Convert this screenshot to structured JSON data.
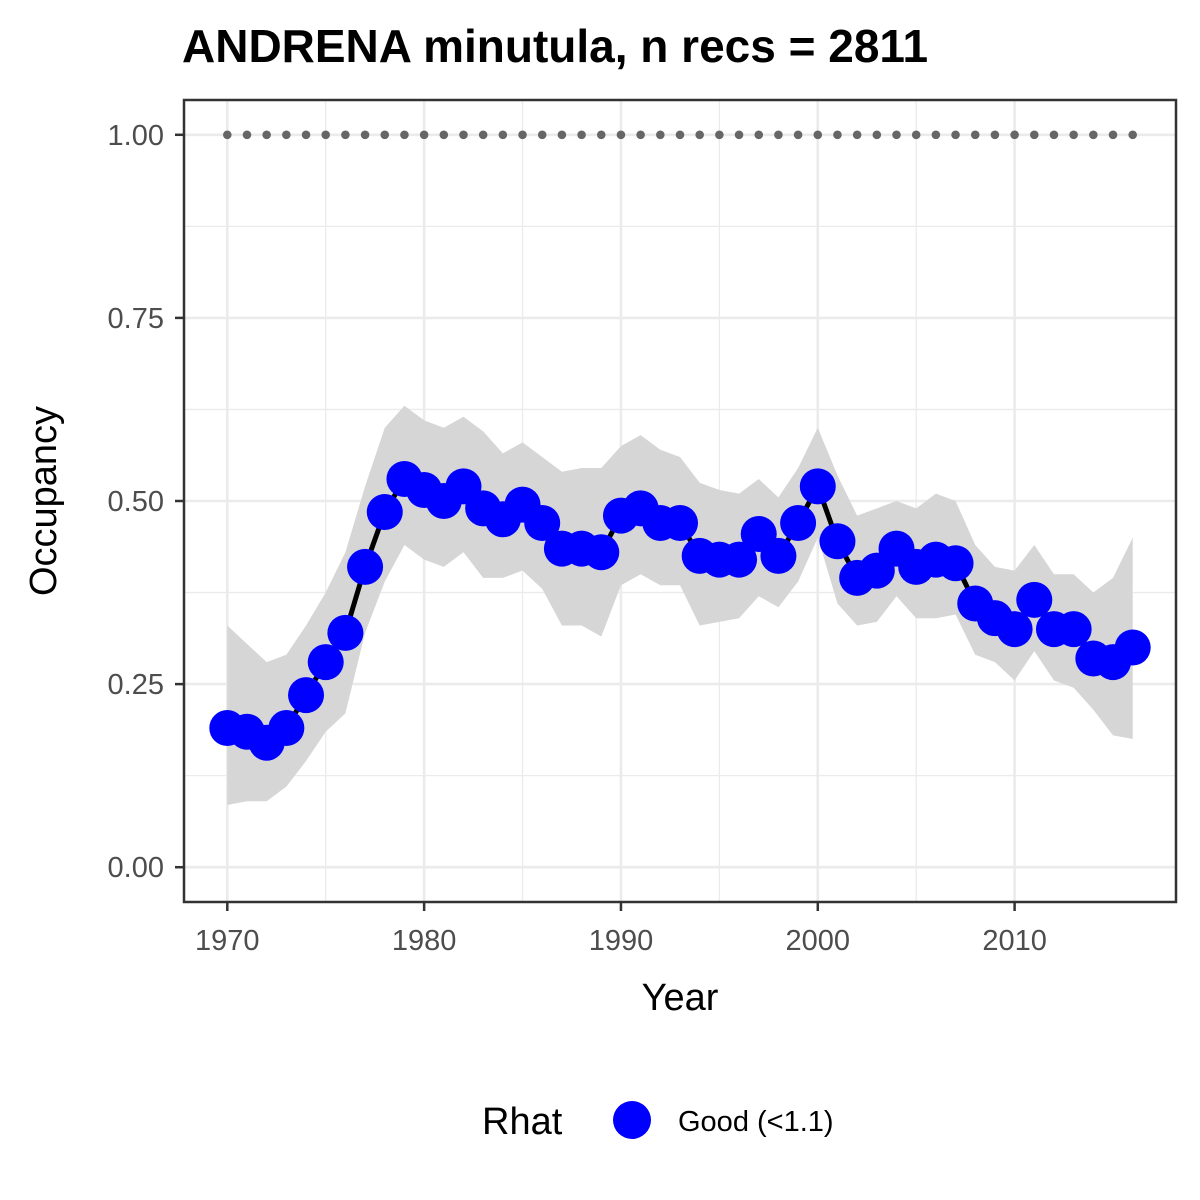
{
  "chart_data": {
    "type": "line",
    "title": "ANDRENA minutula, n recs = 2811",
    "xlabel": "Year",
    "ylabel": "Occupancy",
    "xlim": [
      1967.8,
      2018.2
    ],
    "ylim": [
      -0.0475,
      1.0475
    ],
    "x_ticks": [
      1970,
      1980,
      1990,
      2000,
      2010
    ],
    "x_tick_labels": [
      "1970",
      "1980",
      "1990",
      "2000",
      "2010"
    ],
    "y_ticks": [
      0,
      0.25,
      0.5,
      0.75,
      1.0
    ],
    "y_tick_labels": [
      "0.00",
      "0.25",
      "0.50",
      "0.75",
      "1.00"
    ],
    "grid": true,
    "legend": {
      "title": "Rhat",
      "position": "bottom",
      "entries": [
        {
          "label": "Good (<1.1)",
          "color": "#0000ff"
        }
      ]
    },
    "colors": {
      "points": "#0000ff",
      "line": "#000000",
      "band": "#d6d6d6",
      "reference_dots": "#666666"
    },
    "years": [
      1970,
      1971,
      1972,
      1973,
      1974,
      1975,
      1976,
      1977,
      1978,
      1979,
      1980,
      1981,
      1982,
      1983,
      1984,
      1985,
      1986,
      1987,
      1988,
      1989,
      1990,
      1991,
      1992,
      1993,
      1994,
      1995,
      1996,
      1997,
      1998,
      1999,
      2000,
      2001,
      2002,
      2003,
      2004,
      2005,
      2006,
      2007,
      2008,
      2009,
      2010,
      2011,
      2012,
      2013,
      2014,
      2015,
      2016
    ],
    "series": [
      {
        "name": "Good (<1.1)",
        "values": [
          0.19,
          0.185,
          0.17,
          0.19,
          0.235,
          0.28,
          0.32,
          0.41,
          0.485,
          0.53,
          0.515,
          0.5,
          0.52,
          0.49,
          0.475,
          0.495,
          0.47,
          0.435,
          0.435,
          0.43,
          0.48,
          0.49,
          0.47,
          0.47,
          0.425,
          0.42,
          0.42,
          0.455,
          0.425,
          0.47,
          0.52,
          0.445,
          0.395,
          0.405,
          0.435,
          0.41,
          0.42,
          0.415,
          0.36,
          0.34,
          0.325,
          0.365,
          0.325,
          0.325,
          0.285,
          0.28,
          0.3
        ]
      }
    ],
    "band_upper": [
      0.33,
      0.305,
      0.28,
      0.29,
      0.33,
      0.375,
      0.43,
      0.52,
      0.6,
      0.63,
      0.61,
      0.6,
      0.615,
      0.595,
      0.565,
      0.58,
      0.56,
      0.54,
      0.545,
      0.545,
      0.575,
      0.59,
      0.57,
      0.56,
      0.525,
      0.515,
      0.51,
      0.53,
      0.505,
      0.545,
      0.6,
      0.535,
      0.48,
      0.49,
      0.5,
      0.49,
      0.51,
      0.5,
      0.44,
      0.41,
      0.405,
      0.44,
      0.4,
      0.4,
      0.375,
      0.395,
      0.45
    ],
    "band_lower": [
      0.085,
      0.09,
      0.09,
      0.11,
      0.145,
      0.185,
      0.21,
      0.32,
      0.39,
      0.44,
      0.42,
      0.41,
      0.43,
      0.395,
      0.395,
      0.405,
      0.38,
      0.33,
      0.33,
      0.315,
      0.385,
      0.4,
      0.385,
      0.385,
      0.33,
      0.335,
      0.34,
      0.37,
      0.355,
      0.39,
      0.45,
      0.36,
      0.33,
      0.335,
      0.37,
      0.34,
      0.34,
      0.345,
      0.29,
      0.28,
      0.255,
      0.295,
      0.255,
      0.245,
      0.215,
      0.18,
      0.175
    ],
    "reference_value": 1.0
  }
}
